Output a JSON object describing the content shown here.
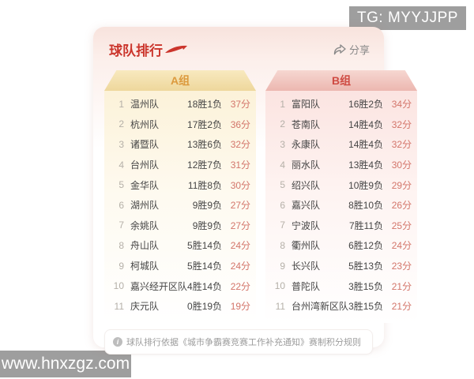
{
  "watermarks": {
    "top_right": "TG: MYYJJPP",
    "bottom_left": "www.hnxzgz.com"
  },
  "card": {
    "title": "球队排行",
    "share_label": "分享",
    "groups": [
      {
        "name": "A组",
        "rows": [
          {
            "rank": "1",
            "team": "温州队",
            "record": "18胜1负",
            "points": "37分"
          },
          {
            "rank": "2",
            "team": "杭州队",
            "record": "17胜2负",
            "points": "36分"
          },
          {
            "rank": "3",
            "team": "诸暨队",
            "record": "13胜6负",
            "points": "32分"
          },
          {
            "rank": "4",
            "team": "台州队",
            "record": "12胜7负",
            "points": "31分"
          },
          {
            "rank": "5",
            "team": "金华队",
            "record": "11胜8负",
            "points": "30分"
          },
          {
            "rank": "6",
            "team": "湖州队",
            "record": "9胜9负",
            "points": "27分"
          },
          {
            "rank": "7",
            "team": "余姚队",
            "record": "9胜9负",
            "points": "27分"
          },
          {
            "rank": "8",
            "team": "舟山队",
            "record": "5胜14负",
            "points": "24分"
          },
          {
            "rank": "9",
            "team": "柯城队",
            "record": "5胜14负",
            "points": "24分"
          },
          {
            "rank": "10",
            "team": "嘉兴经开区队",
            "record": "4胜14负",
            "points": "22分"
          },
          {
            "rank": "11",
            "team": "庆元队",
            "record": "0胜19负",
            "points": "19分"
          }
        ]
      },
      {
        "name": "B组",
        "rows": [
          {
            "rank": "1",
            "team": "富阳队",
            "record": "16胜2负",
            "points": "34分"
          },
          {
            "rank": "2",
            "team": "苍南队",
            "record": "14胜4负",
            "points": "32分"
          },
          {
            "rank": "3",
            "team": "永康队",
            "record": "14胜4负",
            "points": "32分"
          },
          {
            "rank": "4",
            "team": "丽水队",
            "record": "13胜4负",
            "points": "30分"
          },
          {
            "rank": "5",
            "team": "绍兴队",
            "record": "10胜9负",
            "points": "29分"
          },
          {
            "rank": "6",
            "team": "嘉兴队",
            "record": "8胜10负",
            "points": "26分"
          },
          {
            "rank": "7",
            "team": "宁波队",
            "record": "7胜11负",
            "points": "25分"
          },
          {
            "rank": "8",
            "team": "衢州队",
            "record": "6胜12负",
            "points": "24分"
          },
          {
            "rank": "9",
            "team": "长兴队",
            "record": "5胜13负",
            "points": "23分"
          },
          {
            "rank": "10",
            "team": "普陀队",
            "record": "3胜15负",
            "points": "21分"
          },
          {
            "rank": "11",
            "team": "台州湾新区队",
            "record": "3胜15负",
            "points": "21分"
          }
        ]
      }
    ],
    "footer_note": "球队排行依据《城市争霸赛竞赛工作补充通知》赛制积分规则",
    "footer_icon": "i"
  },
  "colors": {
    "title_red": "#cb352c",
    "group_a_text": "#dc9a3e",
    "group_b_text": "#cf4b43",
    "points_red": "#d3756a",
    "rank_gray": "#b5b0a8",
    "text_dark": "#454545",
    "share_gray": "#8a8a8a",
    "footer_gray": "#9c9c9c",
    "watermark_bg": "#9e9e9e"
  }
}
